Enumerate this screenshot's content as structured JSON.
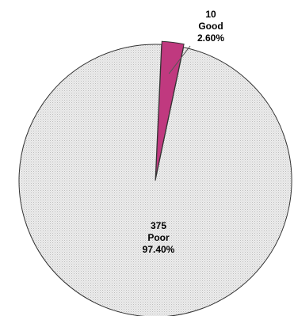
{
  "chart_data": {
    "type": "pie",
    "title": "",
    "legend": "none",
    "exploded": "Good",
    "slices": [
      {
        "label": "Good",
        "count": "10",
        "percent_label": "2.60%",
        "value": 10,
        "percent": 2.6,
        "color": "#c0397f"
      },
      {
        "label": "Poor",
        "count": "375",
        "percent_label": "97.40%",
        "value": 375,
        "percent": 97.4,
        "color": "#e4e4e4"
      }
    ]
  }
}
